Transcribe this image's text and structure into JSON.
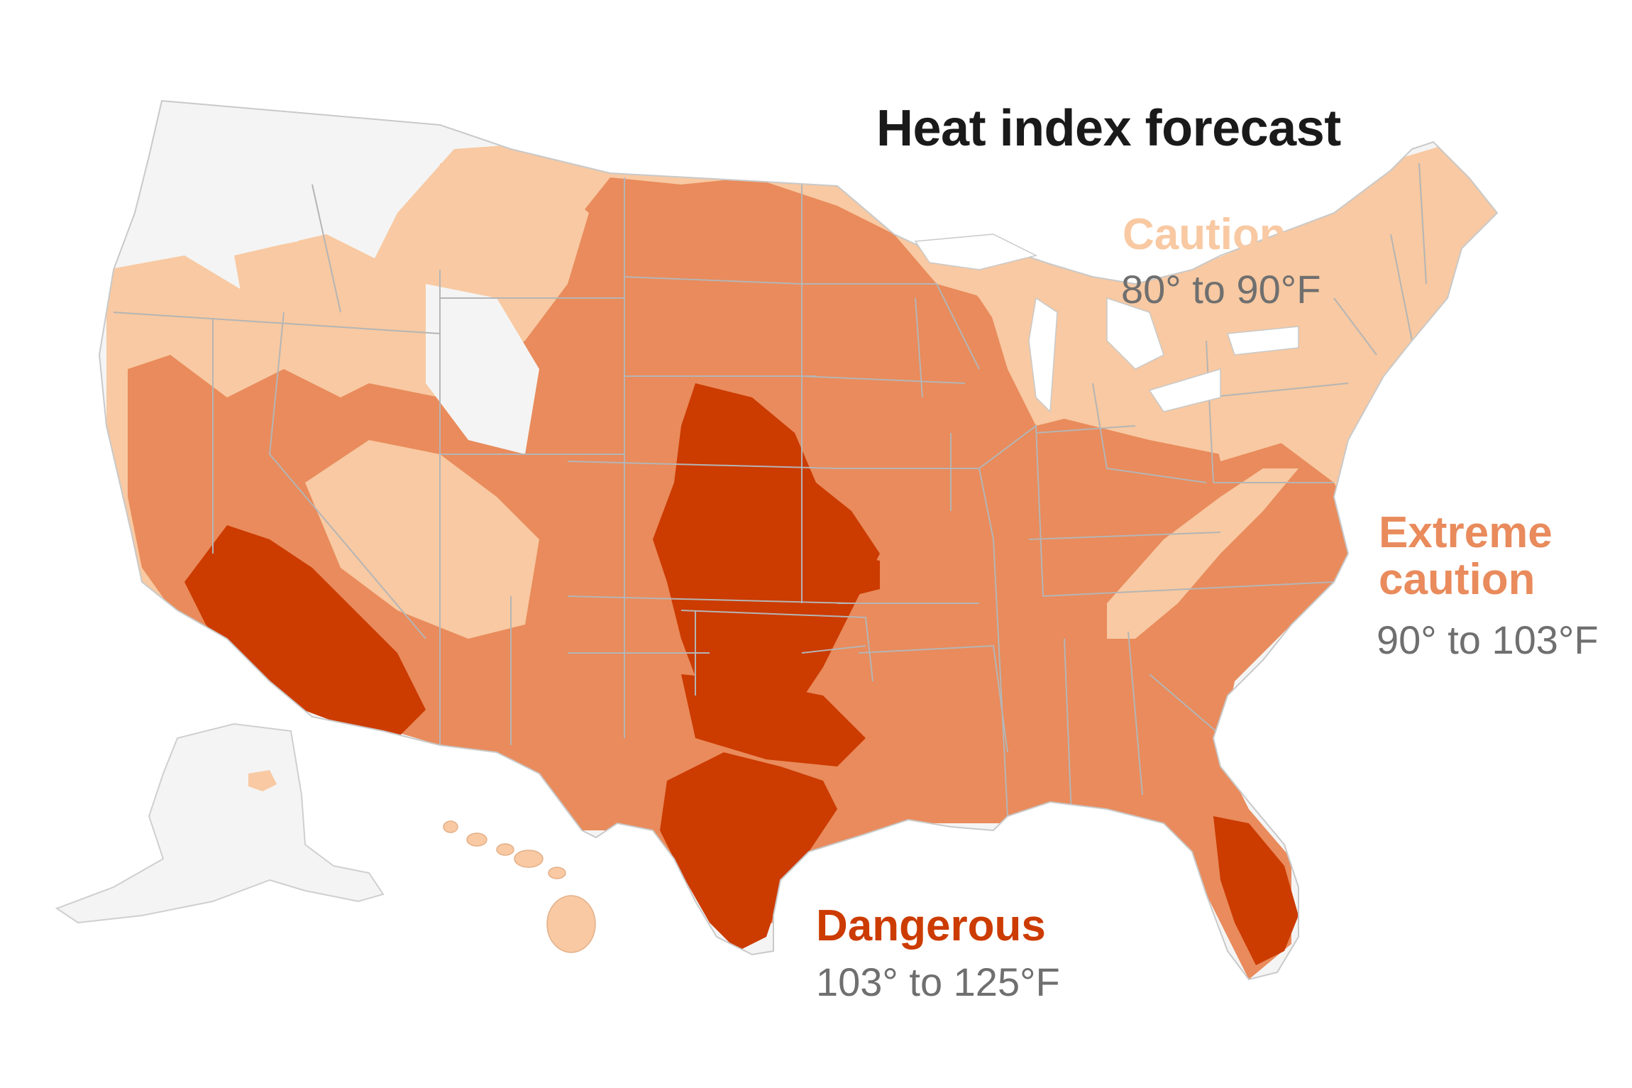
{
  "title": "Heat index forecast",
  "legend": {
    "caution": {
      "label": "Caution",
      "range": "80° to 90°F",
      "color": "#f8c9a2"
    },
    "extreme": {
      "label": "Extreme caution",
      "range": "90° to 103°F",
      "color": "#e98b5c"
    },
    "dangerous": {
      "label": "Dangerous",
      "range": "103° to 125°F",
      "color": "#cc3b00"
    }
  },
  "colors": {
    "no_data": "#f4f4f4",
    "border": "#b5b5b5",
    "range_text": "#6f6f6f",
    "title_text": "#1a1a1a"
  }
}
